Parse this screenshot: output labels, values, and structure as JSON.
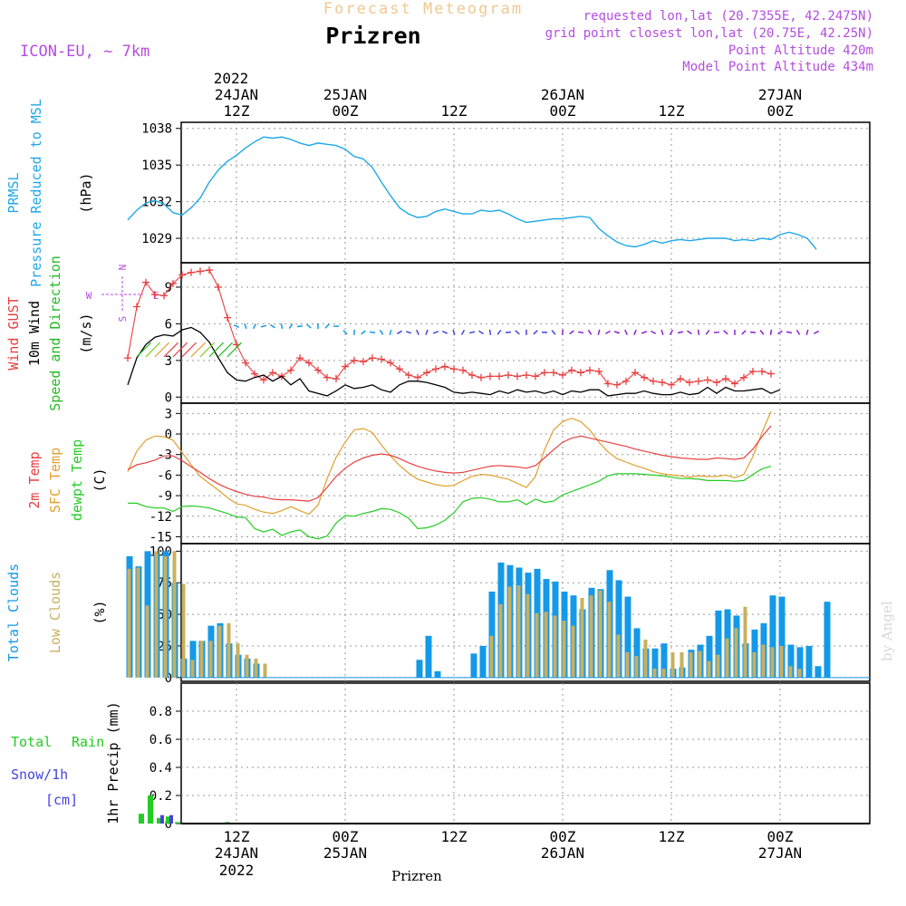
{
  "header": {
    "product": "Forecast Meteogram",
    "location": "Prizren",
    "model": "ICON-EU, ~ 7km",
    "info": [
      "requested lon,lat (20.7355E, 42.2475N)",
      "grid point closest lon,lat (20.75E, 42.25N)",
      "Point Altitude 420m",
      "Model Point Altitude 434m"
    ],
    "bottom_label": "Prizren",
    "watermark": "by Angel"
  },
  "colors": {
    "pressure": "#1ea8e8",
    "gust": "#e84040",
    "wind": "#000000",
    "wind_dir": "#22bb22",
    "temp2m": "#e84040",
    "sfc_temp": "#e0a030",
    "dewpt": "#22cc22",
    "total_clouds": "#1499e8",
    "low_clouds": "#c8b060",
    "rain": "#22cc22",
    "snow": "#4444dd",
    "header_violet": "#b44de0",
    "header_orange": "#f0c890"
  },
  "time_axis": {
    "top_year": "2022",
    "ticks": [
      {
        "t": 12,
        "top": "12Z",
        "top_date": "24JAN",
        "bottom": "12Z",
        "bottom_date": "24JAN",
        "bottom_year": "2022"
      },
      {
        "t": 24,
        "top": "00Z",
        "top_date": "25JAN",
        "bottom": "00Z",
        "bottom_date": "25JAN"
      },
      {
        "t": 36,
        "top": "12Z",
        "bottom": "12Z"
      },
      {
        "t": 48,
        "top": "00Z",
        "top_date": "26JAN",
        "bottom": "00Z",
        "bottom_date": "26JAN"
      },
      {
        "t": 60,
        "top": "12Z",
        "bottom": "12Z"
      },
      {
        "t": 72,
        "top": "00Z",
        "top_date": "27JAN",
        "bottom": "00Z",
        "bottom_date": "27JAN"
      }
    ]
  },
  "chart_data": [
    {
      "type": "line",
      "panel": "pressure",
      "ylabels": [
        {
          "text": "PRMSL",
          "color": "#1ea8e8"
        },
        {
          "text": "Pressure Reduced to MSL",
          "color": "#1ea8e8"
        },
        {
          "text": "(hPa)",
          "color": "#000000"
        }
      ],
      "ylim": [
        1027,
        1038.5
      ],
      "yticks": [
        1029,
        1032,
        1035,
        1038
      ],
      "series": [
        {
          "key": "prmsl",
          "values": [
            1030.5,
            1031.3,
            1031.9,
            1032.1,
            1031.8,
            1031.1,
            1030.9,
            1031.5,
            1032.3,
            1033.6,
            1034.6,
            1035.3,
            1035.8,
            1036.4,
            1036.9,
            1037.3,
            1037.2,
            1037.3,
            1037.1,
            1036.8,
            1036.6,
            1036.8,
            1036.7,
            1036.6,
            1036.3,
            1035.7,
            1035.5,
            1034.8,
            1033.6,
            1032.5,
            1031.5,
            1031.0,
            1030.7,
            1030.8,
            1031.2,
            1031.4,
            1031.2,
            1031.0,
            1031.0,
            1031.3,
            1031.2,
            1031.3,
            1031.0,
            1030.6,
            1030.3,
            1030.4,
            1030.5,
            1030.6,
            1030.6,
            1030.7,
            1030.8,
            1030.7,
            1029.8,
            1029.2,
            1028.7,
            1028.4,
            1028.3,
            1028.5,
            1028.8,
            1028.6,
            1028.8,
            1028.9,
            1028.8,
            1028.9,
            1029.0,
            1029.0,
            1029.0,
            1028.8,
            1028.9,
            1028.8,
            1029.0,
            1028.9,
            1029.3,
            1029.5,
            1029.3,
            1029.0,
            1028.1
          ]
        }
      ]
    },
    {
      "type": "line",
      "panel": "wind",
      "ylabels": [
        {
          "text": "Wind GUST",
          "color": "#e84040"
        },
        {
          "text": "10m Wind",
          "color": "#000000"
        },
        {
          "text": "Speed and Direction",
          "color": "#22bb22"
        },
        {
          "text": "(m/s)",
          "color": "#000000"
        }
      ],
      "compass": {
        "n": "N",
        "s": "S",
        "w": "W",
        "e": "E"
      },
      "ylim": [
        -0.5,
        11
      ],
      "yticks": [
        0,
        3,
        6,
        9
      ],
      "series": [
        {
          "key": "gust",
          "marker": "+",
          "values": [
            3.2,
            7.4,
            9.4,
            8.4,
            8.3,
            9.3,
            10.0,
            10.2,
            10.3,
            10.4,
            9.0,
            6.5,
            4.3,
            2.8,
            1.9,
            1.4,
            2.0,
            1.7,
            2.2,
            3.2,
            2.8,
            2.2,
            1.6,
            1.5,
            2.5,
            3.0,
            2.9,
            3.2,
            3.1,
            2.8,
            2.3,
            1.8,
            1.6,
            2.0,
            2.3,
            2.5,
            2.3,
            2.2,
            1.8,
            1.6,
            1.7,
            1.7,
            1.8,
            1.7,
            1.8,
            1.7,
            2.0,
            2.0,
            1.8,
            2.2,
            2.0,
            2.2,
            2.1,
            1.1,
            1.0,
            1.3,
            2.0,
            1.6,
            1.3,
            1.2,
            1.0,
            1.5,
            1.2,
            1.3,
            1.4,
            1.2,
            1.5,
            1.1,
            1.6,
            2.1,
            2.1,
            1.9
          ]
        },
        {
          "key": "wind10m",
          "values": [
            1.0,
            3.2,
            4.3,
            4.9,
            5.1,
            5.0,
            5.5,
            5.7,
            5.3,
            4.5,
            3.2,
            2.0,
            1.4,
            1.3,
            1.6,
            1.8,
            1.3,
            1.7,
            1.0,
            1.5,
            0.5,
            0.3,
            0.1,
            0.5,
            1.0,
            0.7,
            0.8,
            1.0,
            0.6,
            0.4,
            1.0,
            1.3,
            1.3,
            1.2,
            1.0,
            0.8,
            0.4,
            0.3,
            0.4,
            0.3,
            0.2,
            0.5,
            0.3,
            0.6,
            0.4,
            0.5,
            0.3,
            0.5,
            0.2,
            0.5,
            0.4,
            0.6,
            0.6,
            0.1,
            0.2,
            0.3,
            0.3,
            0.5,
            0.3,
            0.2,
            0.2,
            0.4,
            0.2,
            0.3,
            0.8,
            0.3,
            0.8,
            0.5,
            0.5,
            0.6,
            0.7,
            0.3,
            0.6
          ]
        },
        {
          "key": "wind_dir",
          "level_ms": 3.3,
          "arrows_from_t": 1,
          "arrows_to_t": 11,
          "dir_deg": 225
        }
      ]
    },
    {
      "type": "line",
      "panel": "temperature",
      "ylabels": [
        {
          "text": "2m Temp",
          "color": "#e84040"
        },
        {
          "text": "SFC Temp",
          "color": "#e0a030"
        },
        {
          "text": "dewpt Temp",
          "color": "#22cc22"
        },
        {
          "text": "(C)",
          "color": "#000000"
        }
      ],
      "ylim": [
        -16,
        4.5
      ],
      "yticks": [
        -15,
        -12,
        -9,
        -6,
        -3,
        0,
        3
      ],
      "series": [
        {
          "key": "t2m",
          "values": [
            -5.2,
            -4.5,
            -4.2,
            -3.8,
            -3.2,
            -3.2,
            -3.9,
            -4.8,
            -5.6,
            -6.5,
            -7.3,
            -7.9,
            -8.4,
            -8.8,
            -9.1,
            -9.2,
            -9.5,
            -9.6,
            -9.6,
            -9.7,
            -9.8,
            -9.3,
            -7.8,
            -6.2,
            -5.0,
            -4.1,
            -3.5,
            -3.1,
            -2.9,
            -3.1,
            -3.6,
            -4.2,
            -4.7,
            -5.1,
            -5.4,
            -5.6,
            -5.7,
            -5.6,
            -5.3,
            -5.0,
            -4.7,
            -4.6,
            -4.7,
            -4.8,
            -5.0,
            -4.6,
            -3.5,
            -2.3,
            -1.2,
            -0.6,
            -0.3,
            -0.6,
            -0.9,
            -1.2,
            -1.5,
            -1.8,
            -2.2,
            -2.5,
            -2.8,
            -3.1,
            -3.3,
            -3.5,
            -3.6,
            -3.7,
            -3.7,
            -3.5,
            -3.6,
            -3.7,
            -3.5,
            -2.2,
            -0.4,
            1.2
          ]
        },
        {
          "key": "sfc",
          "values": [
            -5.5,
            -2.5,
            -0.9,
            -0.3,
            -0.4,
            -0.9,
            -2.7,
            -4.5,
            -6.2,
            -7.2,
            -8.2,
            -9.3,
            -10.2,
            -10.4,
            -11.0,
            -11.4,
            -11.6,
            -11.2,
            -10.6,
            -11.2,
            -11.7,
            -10.4,
            -6.5,
            -3.4,
            -1.2,
            0.6,
            0.8,
            0.2,
            -1.6,
            -3.2,
            -4.6,
            -5.7,
            -6.6,
            -7.0,
            -7.4,
            -7.6,
            -7.5,
            -6.8,
            -6.2,
            -5.9,
            -6.0,
            -6.3,
            -6.6,
            -7.2,
            -7.8,
            -6.2,
            -2.3,
            0.6,
            1.8,
            2.3,
            1.8,
            0.6,
            -1.2,
            -2.6,
            -3.6,
            -4.1,
            -4.6,
            -5.0,
            -5.5,
            -5.8,
            -6.0,
            -6.1,
            -6.3,
            -6.1,
            -6.2,
            -6.2,
            -6.0,
            -6.4,
            -5.9,
            -3.3,
            0.2,
            3.3
          ]
        },
        {
          "key": "dewpt",
          "values": [
            -10.1,
            -10.1,
            -10.6,
            -10.8,
            -10.8,
            -11.3,
            -10.6,
            -10.5,
            -10.6,
            -10.8,
            -11.2,
            -11.6,
            -12.1,
            -12.2,
            -13.8,
            -14.3,
            -13.9,
            -14.8,
            -14.3,
            -14.0,
            -15.0,
            -15.3,
            -14.9,
            -13.0,
            -11.9,
            -12.0,
            -11.6,
            -11.3,
            -10.9,
            -11.0,
            -11.5,
            -12.3,
            -13.8,
            -13.7,
            -13.3,
            -12.6,
            -11.5,
            -9.9,
            -9.4,
            -9.3,
            -9.5,
            -9.9,
            -9.9,
            -9.6,
            -10.3,
            -9.5,
            -10.0,
            -9.8,
            -8.9,
            -8.4,
            -7.9,
            -7.4,
            -6.9,
            -6.1,
            -5.8,
            -5.8,
            -5.8,
            -5.9,
            -6.0,
            -6.1,
            -6.3,
            -6.5,
            -6.5,
            -6.6,
            -6.8,
            -6.8,
            -6.8,
            -6.9,
            -6.8,
            -5.9,
            -5.1,
            -4.7
          ]
        }
      ]
    },
    {
      "type": "bar",
      "panel": "clouds",
      "ylabels": [
        {
          "text": "Total Clouds",
          "color": "#1499e8"
        },
        {
          "text": "Low Clouds",
          "color": "#c8b060"
        },
        {
          "text": "(%)",
          "color": "#000000"
        }
      ],
      "ylim": [
        -3,
        106
      ],
      "yticks": [
        0,
        25,
        50,
        75,
        100
      ],
      "series": [
        {
          "key": "total",
          "values": [
            96,
            88,
            100,
            98,
            100,
            75,
            15,
            29,
            29,
            41,
            43,
            27,
            18,
            15,
            11,
            0,
            0,
            0,
            0,
            0,
            0,
            0,
            0,
            0,
            0,
            0,
            0,
            0,
            0,
            0,
            0,
            0,
            14,
            33,
            5,
            0,
            0,
            0,
            19,
            25,
            68,
            91,
            89,
            87,
            83,
            86,
            78,
            76,
            68,
            65,
            54,
            71,
            70,
            85,
            77,
            64,
            39,
            23,
            23,
            27,
            7,
            8,
            22,
            26,
            33,
            53,
            54,
            49,
            27,
            38,
            43,
            65,
            64,
            26,
            24,
            25,
            9,
            60
          ]
        },
        {
          "key": "low",
          "values": [
            86,
            87,
            57,
            100,
            96,
            100,
            74,
            14,
            29,
            29,
            41,
            43,
            27,
            18,
            15,
            11,
            0,
            0,
            0,
            0,
            0,
            0,
            0,
            0,
            0,
            0,
            0,
            0,
            0,
            0,
            0,
            0,
            0,
            0,
            0,
            0,
            0,
            0,
            0,
            0,
            33,
            58,
            72,
            73,
            66,
            51,
            52,
            49,
            45,
            41,
            63,
            65,
            69,
            60,
            34,
            20,
            17,
            30,
            7,
            7,
            20,
            20,
            20,
            21,
            13,
            18,
            31,
            39,
            56,
            20,
            26,
            24,
            25,
            9,
            7
          ]
        }
      ]
    },
    {
      "type": "bar",
      "panel": "precip",
      "ylabels": [
        {
          "text": "Total",
          "color": "#22cc22"
        },
        {
          "text": "Rain",
          "color": "#22cc22"
        },
        {
          "text": "Snow/1h",
          "color": "#4444dd"
        },
        {
          "text": "[cm]",
          "color": "#4444dd"
        },
        {
          "text": "1hr Precip (mm)",
          "color": "#000000"
        }
      ],
      "ylim": [
        0,
        1.0
      ],
      "yticks": [
        0,
        0.2,
        0.4,
        0.6,
        0.8
      ],
      "tick_labels": [
        "0",
        "0.2",
        "0.4",
        "0.6",
        "0.8"
      ],
      "series": [
        {
          "key": "rain",
          "t": [
            1.5,
            2.5,
            3.5,
            4.5,
            5.5,
            11.0
          ],
          "values": [
            0.07,
            0.2,
            0.04,
            0.05,
            0.01,
            0.01
          ]
        },
        {
          "key": "snow",
          "t": [
            3.5,
            4.5
          ],
          "values": [
            0.06,
            0.06
          ]
        }
      ]
    }
  ]
}
